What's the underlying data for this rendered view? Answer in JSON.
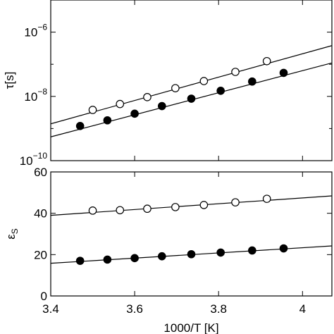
{
  "chart_data": [
    {
      "type": "scatter",
      "title": "",
      "xlabel": "",
      "ylabel": "τ[s]",
      "yscale": "log",
      "xlim": [
        3.4,
        4.07
      ],
      "ylim": [
        1e-10,
        1e-05
      ],
      "yticks": [
        1e-10,
        1e-08,
        1e-06
      ],
      "ytick_labels": [
        {
          "base": "10",
          "exp": "−10"
        },
        {
          "base": "10",
          "exp": "−8"
        },
        {
          "base": "10",
          "exp": "−6"
        }
      ],
      "grid": false,
      "series": [
        {
          "marker": "open-circle",
          "x": [
            3.5,
            3.565,
            3.63,
            3.697,
            3.765,
            3.84,
            3.915
          ],
          "y": [
            3.8e-09,
            5.8e-09,
            9.5e-09,
            1.8e-08,
            3e-08,
            5.8e-08,
            1.25e-07
          ],
          "fit": {
            "x": [
              3.4,
              4.07
            ],
            "y": [
              1.4e-09,
              3.8e-07
            ]
          }
        },
        {
          "marker": "filled-circle",
          "x": [
            3.47,
            3.535,
            3.6,
            3.665,
            3.735,
            3.805,
            3.88,
            3.955
          ],
          "y": [
            1.2e-09,
            1.8e-09,
            2.9e-09,
            5e-09,
            8.5e-09,
            1.5e-08,
            2.9e-08,
            5.4e-08
          ],
          "fit": {
            "x": [
              3.4,
              4.07
            ],
            "y": [
              5.5e-10,
              1.1e-07
            ]
          }
        }
      ]
    },
    {
      "type": "scatter",
      "title": "",
      "xlabel": "1000/T [K]",
      "ylabel": "εS",
      "ylabel_main": "ε",
      "ylabel_sub": "S",
      "xlim": [
        3.4,
        4.07
      ],
      "ylim": [
        0,
        60
      ],
      "xticks": [
        3.4,
        3.6,
        3.8,
        4.0
      ],
      "xtick_labels": [
        "3.4",
        "3.6",
        "3.8",
        "4"
      ],
      "yticks": [
        0,
        20,
        40,
        60
      ],
      "ytick_labels": [
        "0",
        "20",
        "40",
        "60"
      ],
      "grid": false,
      "series": [
        {
          "marker": "open-circle",
          "x": [
            3.5,
            3.565,
            3.63,
            3.697,
            3.765,
            3.84,
            3.915
          ],
          "y": [
            41.3,
            41.5,
            42.2,
            43.0,
            44.0,
            45.3,
            47.0
          ],
          "fit": {
            "x": [
              3.4,
              4.07
            ],
            "y": [
              39.0,
              48.4
            ]
          }
        },
        {
          "marker": "filled-circle",
          "x": [
            3.47,
            3.535,
            3.6,
            3.665,
            3.735,
            3.805,
            3.88,
            3.955
          ],
          "y": [
            17.0,
            17.6,
            18.3,
            19.2,
            20.2,
            21.0,
            22.0,
            23.0
          ],
          "fit": {
            "x": [
              3.4,
              4.07
            ],
            "y": [
              15.8,
              24.2
            ]
          }
        }
      ]
    }
  ]
}
